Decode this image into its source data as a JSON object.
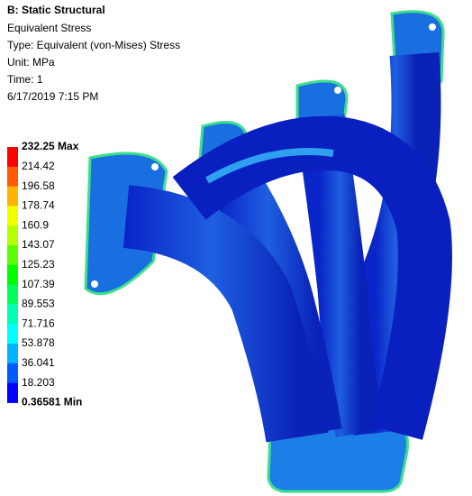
{
  "header": {
    "title": "B: Static Structural",
    "lines": [
      "Equivalent Stress",
      "Type: Equivalent (von-Mises) Stress",
      "Unit: MPa",
      "Time: 1",
      "6/17/2019 7:15 PM"
    ]
  },
  "legend": {
    "labels": [
      "232.25 Max",
      "214.42",
      "196.58",
      "178.74",
      "160.9",
      "143.07",
      "125.23",
      "107.39",
      "89.553",
      "71.716",
      "53.878",
      "36.041",
      "18.203",
      "0.36581 Min"
    ],
    "colors": [
      "#ff0000",
      "#ff5b00",
      "#ffb400",
      "#f2ff00",
      "#b4ff00",
      "#5bff00",
      "#00ff00",
      "#00ff5b",
      "#00ffb4",
      "#00ffff",
      "#00b4ff",
      "#005bff",
      "#0000ff"
    ]
  }
}
